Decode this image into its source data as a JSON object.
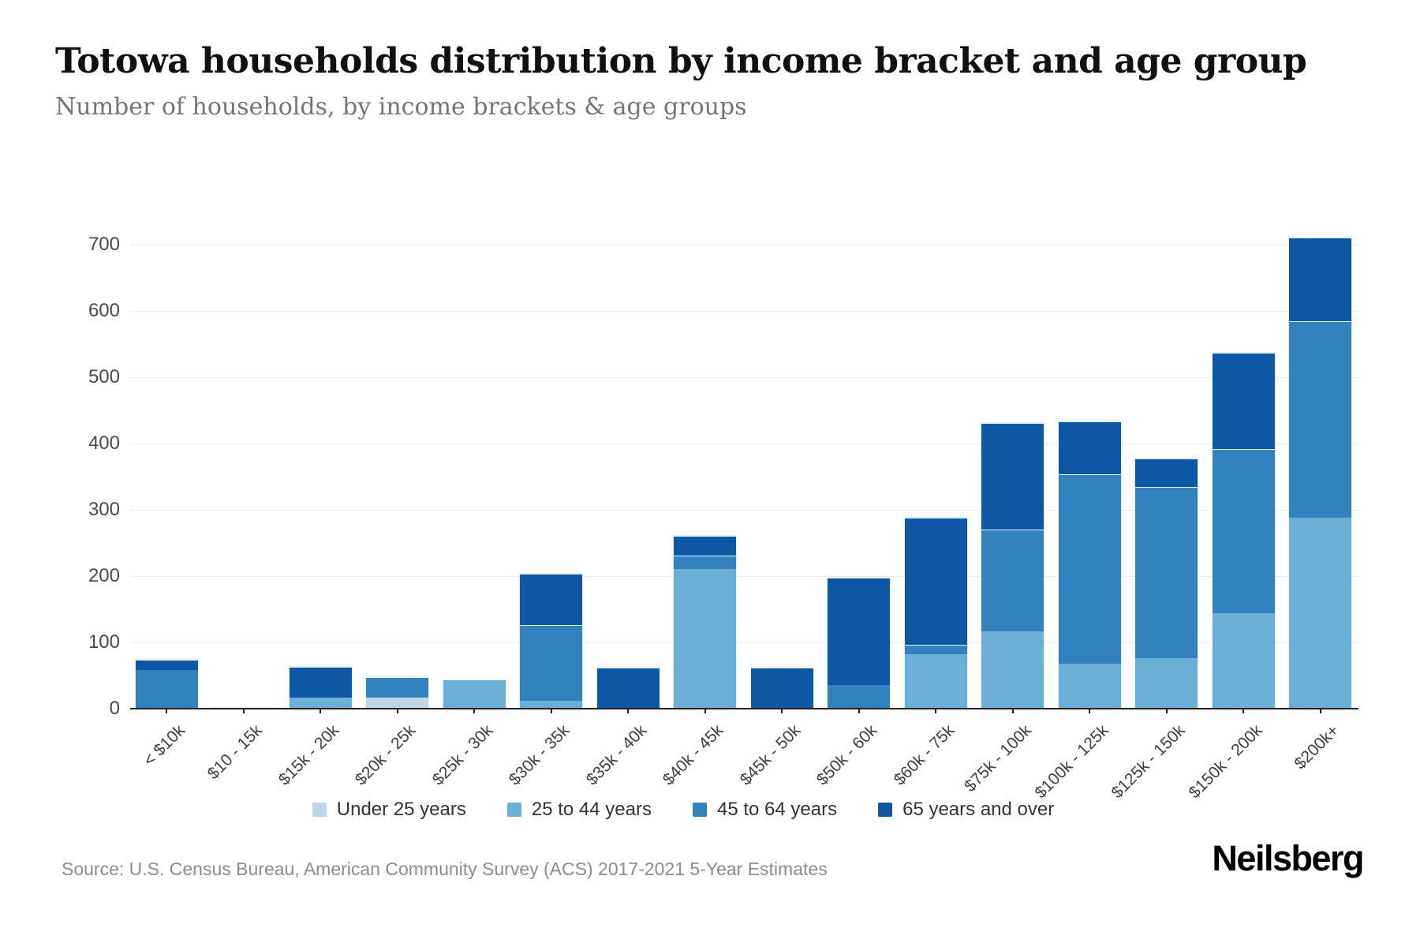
{
  "title": "Totowa households distribution by income bracket and age group",
  "subtitle": "Number of households, by income brackets & age groups",
  "source": "Source: U.S. Census Bureau, American Community Survey (ACS) 2017-2021 5-Year Estimates",
  "logo": "Neilsberg",
  "colors": {
    "under_25": "#bdd7e7",
    "age_25_44": "#6baed6",
    "age_45_64": "#3182bd",
    "age_65_plus": "#0d57a5",
    "axis": "#222222",
    "grid": "#ececec",
    "tick_label": "#4a4a4a"
  },
  "chart_data": {
    "type": "bar",
    "stacked": true,
    "title": "Totowa households distribution by income bracket and age group",
    "subtitle": "Number of households, by income brackets & age groups",
    "xlabel": "",
    "ylabel": "Number of households",
    "ylim": [
      0,
      700
    ],
    "yticks": [
      0,
      100,
      200,
      300,
      400,
      500,
      600,
      700
    ],
    "grid": true,
    "legend_position": "bottom",
    "categories": [
      "< $10k",
      "$10 - 15k",
      "$15k - 20k",
      "$20k - 25k",
      "$25k - 30k",
      "$30k - 35k",
      "$35k - 40k",
      "$40k - 45k",
      "$45k - 50k",
      "$50k - 60k",
      "$60k - 75k",
      "$75k - 100k",
      "$100k - 125k",
      "$125k - 150k",
      "$150k - 200k",
      "$200k+"
    ],
    "series": [
      {
        "name": "Under 25 years",
        "color": "#bdd7e7",
        "values": [
          0,
          0,
          0,
          15,
          0,
          0,
          0,
          0,
          0,
          0,
          0,
          0,
          0,
          0,
          0,
          0
        ]
      },
      {
        "name": "25 to 44 years",
        "color": "#6baed6",
        "values": [
          0,
          0,
          16,
          0,
          42,
          11,
          0,
          210,
          0,
          0,
          81,
          115,
          67,
          75,
          143,
          287
        ]
      },
      {
        "name": "45 to 64 years",
        "color": "#3182bd",
        "values": [
          57,
          0,
          0,
          32,
          0,
          114,
          0,
          20,
          0,
          34,
          14,
          154,
          285,
          258,
          248,
          296
        ]
      },
      {
        "name": "65 years and over",
        "color": "#0d57a5",
        "values": [
          16,
          0,
          46,
          0,
          0,
          77,
          60,
          30,
          59,
          163,
          192,
          161,
          80,
          43,
          145,
          127
        ]
      }
    ],
    "totals": [
      73,
      0,
      62,
      47,
      42,
      202,
      60,
      260,
      59,
      197,
      287,
      430,
      432,
      376,
      536,
      710
    ]
  }
}
